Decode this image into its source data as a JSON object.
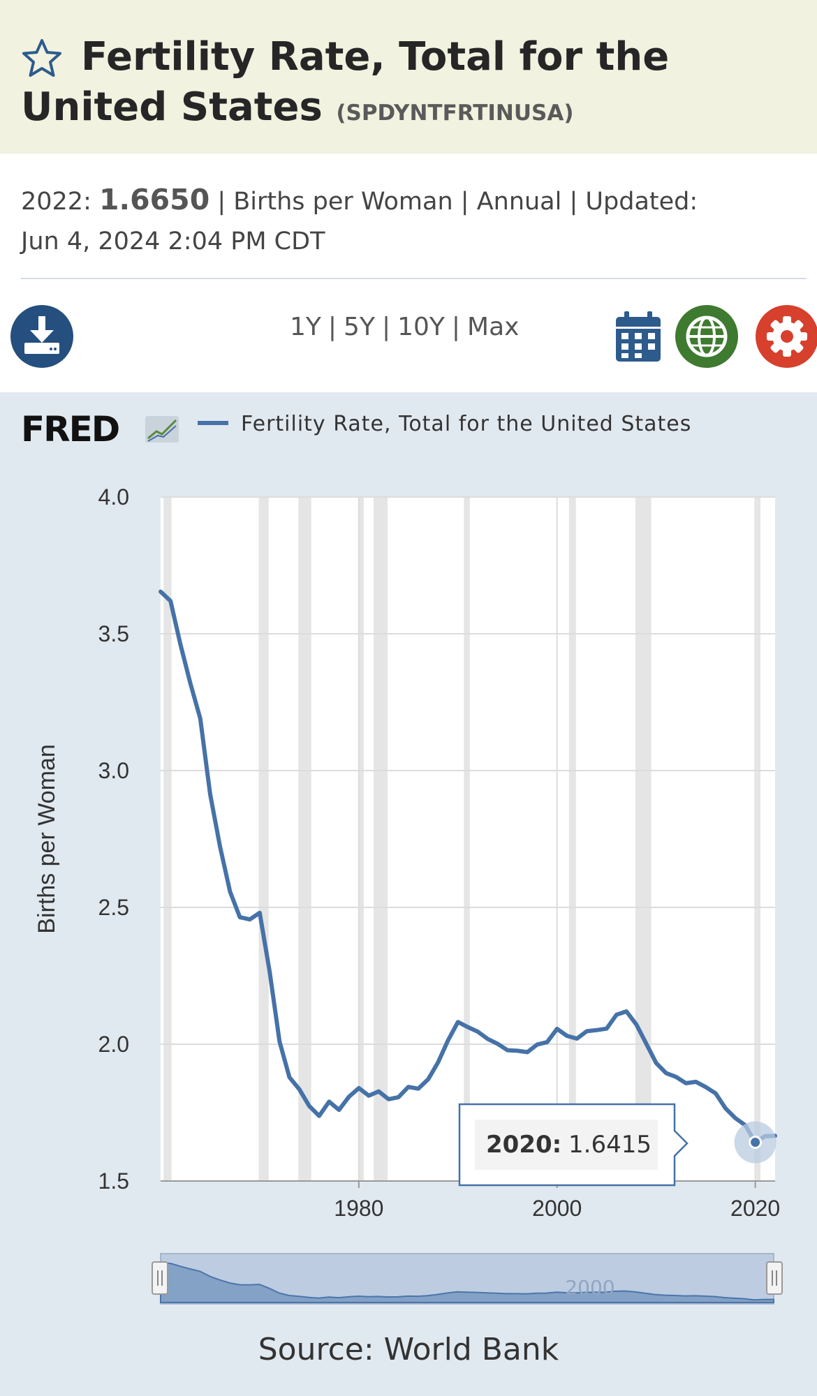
{
  "header": {
    "title": "Fertility Rate, Total for the United States",
    "series_id": "(SPDYNTFRTINUSA)"
  },
  "meta": {
    "latest_period": "2022:",
    "latest_value": "1.6650",
    "units": "Births per Woman",
    "frequency": "Annual",
    "updated_label": "Updated:",
    "updated": "Jun 4, 2024 2:04 PM CDT"
  },
  "ranges": [
    "1Y",
    "5Y",
    "10Y",
    "Max"
  ],
  "icons": {
    "download": "download-icon",
    "calendar": "calendar-icon",
    "globe": "globe-icon",
    "settings": "gear-icon",
    "star": "star-icon"
  },
  "colors": {
    "series": "#4572a7",
    "title_bg": "#f1f2df",
    "panel_bg": "#e1e9f0",
    "recession": "#e5e5e5",
    "download": "#244f7e",
    "globe": "#3e7a2f",
    "settings": "#d6402c"
  },
  "legend_label": "Fertility Rate, Total for the United States",
  "tooltip": {
    "period": "2020:",
    "value": "1.6415"
  },
  "source": "Source: World Bank",
  "navigator_label": "2000",
  "chart_data": {
    "type": "line",
    "ylabel": "Births per Woman",
    "ylim": [
      1.5,
      4.0
    ],
    "yticks": [
      "1.5",
      "2.0",
      "2.5",
      "3.0",
      "3.5",
      "4.0"
    ],
    "xlim": [
      1960,
      2022
    ],
    "xticks": [
      "1980",
      "2000",
      "2020"
    ],
    "grid": true,
    "legend_position": "top",
    "recessions": [
      [
        1960.3,
        1961.1
      ],
      [
        1969.9,
        1970.9
      ],
      [
        1973.9,
        1975.2
      ],
      [
        1980.0,
        1980.5
      ],
      [
        1981.5,
        1982.9
      ],
      [
        1990.6,
        1991.2
      ],
      [
        2001.2,
        2001.9
      ],
      [
        2007.9,
        2009.5
      ],
      [
        2020.1,
        2020.3
      ]
    ],
    "series": [
      {
        "name": "Fertility Rate, Total for the United States",
        "x": [
          1960,
          1961,
          1962,
          1963,
          1964,
          1965,
          1966,
          1967,
          1968,
          1969,
          1970,
          1971,
          1972,
          1973,
          1974,
          1975,
          1976,
          1977,
          1978,
          1979,
          1980,
          1981,
          1982,
          1983,
          1984,
          1985,
          1986,
          1987,
          1988,
          1989,
          1990,
          1991,
          1992,
          1993,
          1994,
          1995,
          1996,
          1997,
          1998,
          1999,
          2000,
          2001,
          2002,
          2003,
          2004,
          2005,
          2006,
          2007,
          2008,
          2009,
          2010,
          2011,
          2012,
          2013,
          2014,
          2015,
          2016,
          2017,
          2018,
          2019,
          2020,
          2021,
          2022
        ],
        "values": [
          3.654,
          3.62,
          3.461,
          3.319,
          3.19,
          2.913,
          2.721,
          2.558,
          2.464,
          2.456,
          2.48,
          2.266,
          2.01,
          1.879,
          1.835,
          1.774,
          1.738,
          1.79,
          1.76,
          1.808,
          1.8395,
          1.812,
          1.8275,
          1.799,
          1.8065,
          1.844,
          1.8375,
          1.872,
          1.934,
          2.014,
          2.081,
          2.0625,
          2.046,
          2.0195,
          2.0015,
          1.978,
          1.976,
          1.971,
          1.999,
          2.0075,
          2.056,
          2.0305,
          2.0205,
          2.0475,
          2.0515,
          2.057,
          2.108,
          2.12,
          2.072,
          2.002,
          1.931,
          1.8945,
          1.8805,
          1.8575,
          1.8625,
          1.8435,
          1.8205,
          1.7655,
          1.7295,
          1.7035,
          1.6415,
          1.664,
          1.665
        ]
      }
    ]
  }
}
